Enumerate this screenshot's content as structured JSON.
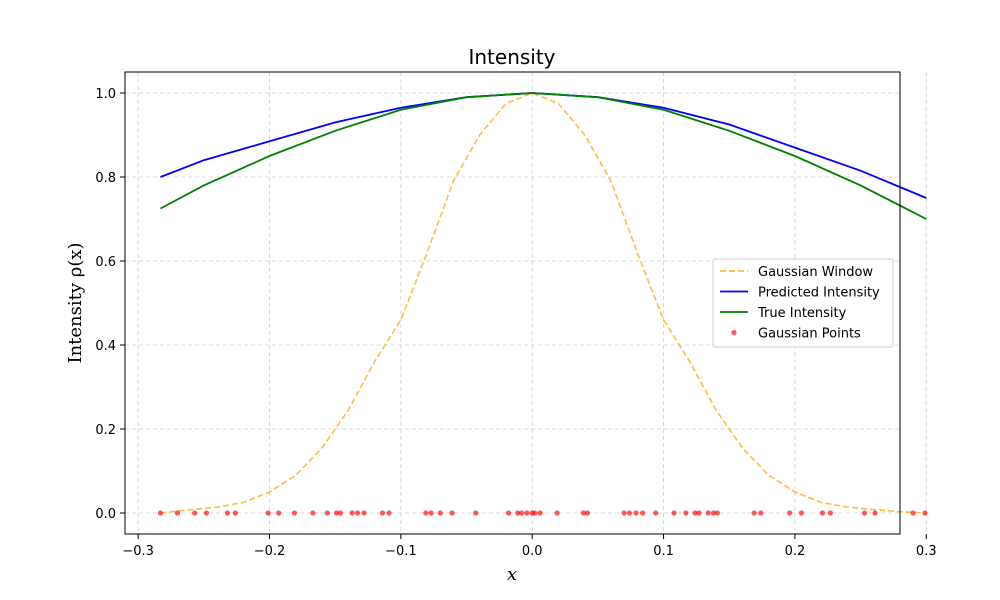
{
  "chart_data": {
    "type": "line",
    "title": "Intensity",
    "xlabel": "x",
    "ylabel": "Intensity ρ(x)",
    "xlim": [
      -0.31,
      0.28
    ],
    "ylim": [
      -0.05,
      1.05
    ],
    "xticks": [
      -0.3,
      -0.2,
      -0.1,
      0.0,
      0.1,
      0.2,
      0.3
    ],
    "xtick_labels": [
      "−0.3",
      "−0.2",
      "−0.1",
      "0.0",
      "0.1",
      "0.2",
      "0.3"
    ],
    "yticks": [
      0.0,
      0.2,
      0.4,
      0.6,
      0.8,
      1.0
    ],
    "ytick_labels": [
      "0.0",
      "0.2",
      "0.4",
      "0.6",
      "0.8",
      "1.0"
    ],
    "grid": true,
    "legend_position": "center-right",
    "series": [
      {
        "name": "Gaussian Window",
        "style": "dashed",
        "color": "#ffa500",
        "x": [
          -0.283,
          -0.26,
          -0.24,
          -0.22,
          -0.2,
          -0.18,
          -0.16,
          -0.14,
          -0.12,
          -0.1,
          -0.08,
          -0.06,
          -0.04,
          -0.02,
          0.0,
          0.02,
          0.04,
          0.06,
          0.08,
          0.1,
          0.12,
          0.14,
          0.16,
          0.18,
          0.2,
          0.22,
          0.24,
          0.26,
          0.28,
          0.3
        ],
        "y": [
          0.0,
          0.008,
          0.014,
          0.025,
          0.05,
          0.09,
          0.155,
          0.245,
          0.36,
          0.46,
          0.62,
          0.79,
          0.9,
          0.975,
          1.0,
          0.975,
          0.9,
          0.79,
          0.62,
          0.46,
          0.36,
          0.245,
          0.155,
          0.09,
          0.05,
          0.025,
          0.014,
          0.008,
          0.003,
          0.0
        ]
      },
      {
        "name": "Predicted Intensity",
        "style": "solid",
        "color": "#0000ff",
        "x": [
          -0.283,
          -0.25,
          -0.2,
          -0.15,
          -0.1,
          -0.05,
          0.0,
          0.05,
          0.1,
          0.15,
          0.2,
          0.25,
          0.3
        ],
        "y": [
          0.8,
          0.84,
          0.885,
          0.93,
          0.965,
          0.99,
          1.0,
          0.99,
          0.965,
          0.925,
          0.87,
          0.815,
          0.75
        ]
      },
      {
        "name": "True Intensity",
        "style": "solid",
        "color": "#008000",
        "x": [
          -0.283,
          -0.25,
          -0.2,
          -0.15,
          -0.1,
          -0.05,
          0.0,
          0.05,
          0.1,
          0.15,
          0.2,
          0.25,
          0.3
        ],
        "y": [
          0.725,
          0.78,
          0.85,
          0.91,
          0.96,
          0.99,
          1.0,
          0.99,
          0.96,
          0.91,
          0.85,
          0.78,
          0.7
        ]
      },
      {
        "name": "Gaussian Points",
        "type": "scatter",
        "color": "#ff0000",
        "x": [
          -0.283,
          -0.27,
          -0.257,
          -0.248,
          -0.232,
          -0.226,
          -0.201,
          -0.193,
          -0.181,
          -0.167,
          -0.156,
          -0.149,
          -0.146,
          -0.137,
          -0.133,
          -0.128,
          -0.114,
          -0.109,
          -0.081,
          -0.077,
          -0.07,
          -0.061,
          -0.043,
          -0.018,
          -0.011,
          -0.008,
          -0.004,
          0.0,
          0.002,
          0.006,
          0.019,
          0.039,
          0.042,
          0.07,
          0.074,
          0.079,
          0.084,
          0.094,
          0.108,
          0.117,
          0.124,
          0.127,
          0.134,
          0.138,
          0.141,
          0.169,
          0.174,
          0.196,
          0.205,
          0.221,
          0.227,
          0.253,
          0.261,
          0.29,
          0.299
        ],
        "y": [
          0,
          0,
          0,
          0,
          0,
          0,
          0,
          0,
          0,
          0,
          0,
          0,
          0,
          0,
          0,
          0,
          0,
          0,
          0,
          0,
          0,
          0,
          0,
          0,
          0,
          0,
          0,
          0,
          0,
          0,
          0,
          0,
          0,
          0,
          0,
          0,
          0,
          0,
          0,
          0,
          0,
          0,
          0,
          0,
          0,
          0,
          0,
          0,
          0,
          0,
          0,
          0,
          0,
          0,
          0
        ]
      }
    ]
  }
}
